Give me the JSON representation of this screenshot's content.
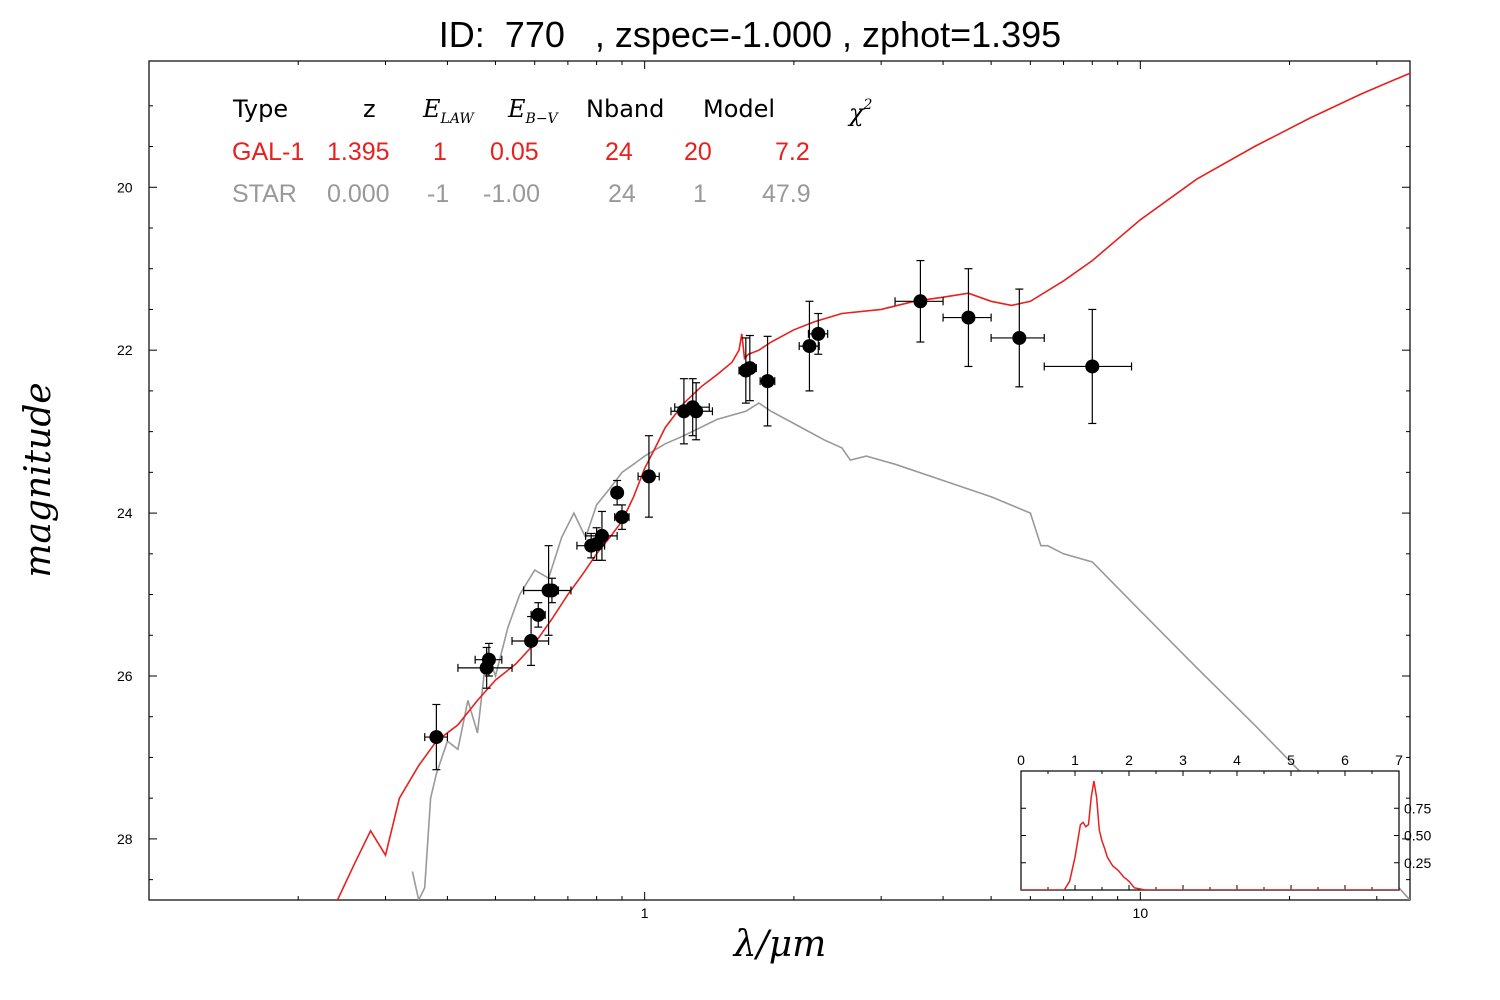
{
  "title": "ID:  770   , zspec=-1.000 , zphot=1.395",
  "table": {
    "headers": [
      "Type",
      "z",
      "E_LAW",
      "E_B-V",
      "Nband",
      "Model",
      "χ2"
    ],
    "rows": [
      {
        "type": "GAL-1",
        "z": "1.395",
        "elaw": "1",
        "ebv": "0.05",
        "nband": "24",
        "model": "20",
        "chi2": "7.2",
        "color": "#e8201e"
      },
      {
        "type": "STAR",
        "z": "0.000",
        "elaw": "-1",
        "ebv": "-1.00",
        "nband": "24",
        "model": "1",
        "chi2": "47.9",
        "color": "#999999"
      }
    ]
  },
  "chart_data": [
    {
      "type": "line",
      "xlabel": "λ/μm",
      "ylabel": "magnitude",
      "x_scale": "log",
      "xlim": [
        0.1,
        35
      ],
      "ylim": [
        28.75,
        18.45
      ],
      "x_ticks": [
        1,
        10
      ],
      "x_tick_labels": [
        "1",
        "10"
      ],
      "y_ticks": [
        20,
        22,
        24,
        26,
        28
      ],
      "y_tick_labels": [
        "20",
        "22",
        "24",
        "26",
        "28"
      ],
      "series": [
        {
          "name": "GAL-1",
          "color": "#e8201e",
          "x": [
            0.24,
            0.26,
            0.28,
            0.3,
            0.32,
            0.35,
            0.38,
            0.42,
            0.46,
            0.5,
            0.55,
            0.6,
            0.65,
            0.7,
            0.75,
            0.8,
            0.85,
            0.9,
            0.95,
            1.0,
            1.05,
            1.1,
            1.2,
            1.3,
            1.4,
            1.5,
            1.55,
            1.57,
            1.59,
            1.62,
            1.7,
            1.8,
            2.0,
            2.2,
            2.5,
            3.0,
            3.5,
            4.0,
            4.5,
            5.0,
            5.5,
            6.0,
            7.0,
            8.0,
            10.0,
            13.0,
            17.0,
            22.0,
            28.0,
            35.0
          ],
          "y": [
            28.75,
            28.3,
            27.9,
            28.2,
            27.5,
            27.1,
            26.8,
            26.6,
            26.3,
            26.05,
            25.85,
            25.6,
            25.3,
            25.0,
            24.75,
            24.5,
            24.3,
            24.1,
            23.8,
            23.45,
            23.2,
            22.95,
            22.65,
            22.45,
            22.3,
            22.15,
            22.0,
            21.8,
            22.1,
            22.05,
            22.0,
            21.9,
            21.75,
            21.65,
            21.55,
            21.5,
            21.4,
            21.35,
            21.3,
            21.4,
            21.45,
            21.4,
            21.15,
            20.9,
            20.4,
            19.9,
            19.5,
            19.15,
            18.85,
            18.6
          ]
        },
        {
          "name": "STAR",
          "color": "#999999",
          "x": [
            0.34,
            0.35,
            0.36,
            0.37,
            0.38,
            0.4,
            0.42,
            0.44,
            0.46,
            0.48,
            0.5,
            0.53,
            0.56,
            0.6,
            0.64,
            0.68,
            0.72,
            0.76,
            0.8,
            0.85,
            0.9,
            0.95,
            1.0,
            1.1,
            1.2,
            1.4,
            1.6,
            1.7,
            1.8,
            2.0,
            2.3,
            2.5,
            2.6,
            2.8,
            3.2,
            4.0,
            5.0,
            6.0,
            6.3,
            6.5,
            7.0,
            8.0,
            10.0,
            13.0,
            17.0,
            22.0,
            28.0,
            35.0
          ],
          "y": [
            28.4,
            28.75,
            28.6,
            27.5,
            27.2,
            26.8,
            26.9,
            26.3,
            26.7,
            25.7,
            26.0,
            25.4,
            25.0,
            24.7,
            24.8,
            24.3,
            24.0,
            24.3,
            23.9,
            23.7,
            23.5,
            23.4,
            23.3,
            23.15,
            23.05,
            22.85,
            22.75,
            22.65,
            22.75,
            22.9,
            23.1,
            23.2,
            23.35,
            23.3,
            23.4,
            23.6,
            23.8,
            24.0,
            24.4,
            24.4,
            24.5,
            24.6,
            25.2,
            25.9,
            26.6,
            27.3,
            28.1,
            28.75
          ]
        }
      ],
      "points": [
        {
          "x": 0.38,
          "y": 26.75,
          "xerr": 0.02,
          "yerr": 0.4
        },
        {
          "x": 0.48,
          "y": 25.9,
          "xerr": 0.06,
          "yerr": 0.25
        },
        {
          "x": 0.485,
          "y": 25.8,
          "xerr": 0.03,
          "yerr": 0.2
        },
        {
          "x": 0.59,
          "y": 25.57,
          "xerr": 0.05,
          "yerr": 0.3
        },
        {
          "x": 0.61,
          "y": 25.25,
          "xerr": 0.02,
          "yerr": 0.15
        },
        {
          "x": 0.64,
          "y": 24.95,
          "xerr": 0.07,
          "yerr": 0.55
        },
        {
          "x": 0.65,
          "y": 24.95,
          "xerr": 0.02,
          "yerr": 0.15
        },
        {
          "x": 0.78,
          "y": 24.4,
          "xerr": 0.05,
          "yerr": 0.15
        },
        {
          "x": 0.8,
          "y": 24.38,
          "xerr": 0.03,
          "yerr": 0.2
        },
        {
          "x": 0.82,
          "y": 24.28,
          "xerr": 0.06,
          "yerr": 0.3
        },
        {
          "x": 0.88,
          "y": 23.75,
          "xerr": 0.02,
          "yerr": 0.15
        },
        {
          "x": 0.9,
          "y": 24.05,
          "xerr": 0.03,
          "yerr": 0.15
        },
        {
          "x": 1.02,
          "y": 23.55,
          "xerr": 0.05,
          "yerr": 0.5
        },
        {
          "x": 1.2,
          "y": 22.75,
          "xerr": 0.07,
          "yerr": 0.4
        },
        {
          "x": 1.25,
          "y": 22.7,
          "xerr": 0.1,
          "yerr": 0.35
        },
        {
          "x": 1.27,
          "y": 22.75,
          "xerr": 0.1,
          "yerr": 0.35
        },
        {
          "x": 1.6,
          "y": 22.25,
          "xerr": 0.05,
          "yerr": 0.4
        },
        {
          "x": 1.63,
          "y": 22.22,
          "xerr": 0.05,
          "yerr": 0.4
        },
        {
          "x": 1.77,
          "y": 22.38,
          "xerr": 0.06,
          "yerr": 0.55
        },
        {
          "x": 2.15,
          "y": 21.95,
          "xerr": 0.1,
          "yerr": 0.55
        },
        {
          "x": 2.24,
          "y": 21.8,
          "xerr": 0.1,
          "yerr": 0.25
        },
        {
          "x": 3.6,
          "y": 21.4,
          "xerr": 0.4,
          "yerr": 0.5
        },
        {
          "x": 4.5,
          "y": 21.6,
          "xerr": 0.5,
          "yerr": 0.6
        },
        {
          "x": 5.7,
          "y": 21.85,
          "xerr": 0.7,
          "yerr": 0.6
        },
        {
          "x": 8.0,
          "y": 22.2,
          "xerr": 1.6,
          "yerr": 0.7
        }
      ]
    },
    {
      "type": "line",
      "title": "",
      "xlim": [
        0,
        7
      ],
      "ylim": [
        0,
        1
      ],
      "x_ticks": [
        0,
        1,
        2,
        3,
        4,
        5,
        6,
        7
      ],
      "x_tick_labels": [
        "0",
        "1",
        "2",
        "3",
        "4",
        "5",
        "6",
        "7"
      ],
      "y_ticks": [
        0.25,
        0.5,
        0.75
      ],
      "y_tick_labels": [
        "0.25",
        "0.50",
        "0.75"
      ],
      "series": [
        {
          "color": "#e8201e",
          "x": [
            0,
            0.8,
            0.9,
            1.0,
            1.05,
            1.1,
            1.15,
            1.2,
            1.25,
            1.3,
            1.35,
            1.4,
            1.45,
            1.5,
            1.55,
            1.6,
            1.7,
            1.8,
            1.9,
            2.0,
            2.1,
            2.3,
            7.0
          ],
          "y": [
            0,
            0,
            0.08,
            0.3,
            0.45,
            0.6,
            0.62,
            0.58,
            0.6,
            0.85,
            1.0,
            0.85,
            0.55,
            0.45,
            0.38,
            0.3,
            0.22,
            0.18,
            0.12,
            0.08,
            0.02,
            0,
            0
          ]
        }
      ]
    }
  ]
}
